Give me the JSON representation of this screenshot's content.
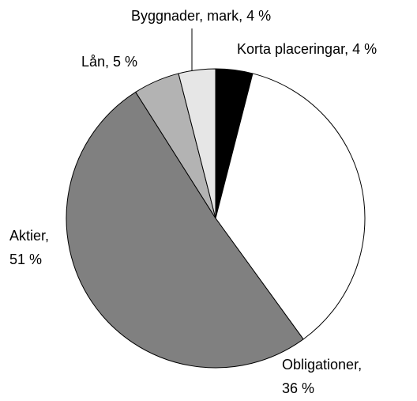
{
  "chart_data": {
    "type": "pie",
    "categories": [
      "Korta placeringar,",
      "Obligationer,",
      "Aktier,",
      "Lån,",
      "Byggnader, mark,"
    ],
    "values": [
      4,
      36,
      51,
      5,
      4
    ],
    "value_labels": [
      "4 %",
      "36 %",
      "51 %",
      "5 %",
      "4 %"
    ],
    "colors": [
      "#000000",
      "#ffffff",
      "#808080",
      "#b3b3b3",
      "#e6e6e6"
    ]
  }
}
